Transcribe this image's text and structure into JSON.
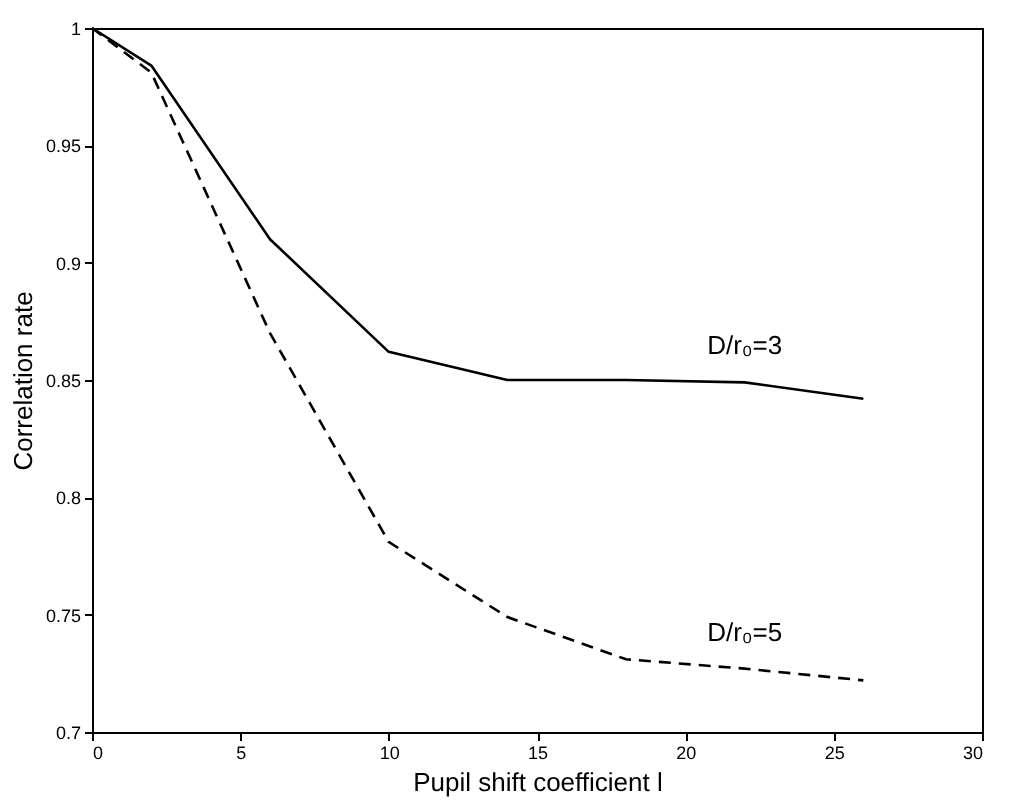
{
  "chart_data": {
    "type": "line",
    "xlabel": "Pupil shift coefficient l",
    "ylabel": "Correlation rate",
    "x": [
      0,
      2,
      6,
      10,
      14,
      18,
      22,
      26
    ],
    "series": [
      {
        "name": "D/r₀=3",
        "color": "#000000",
        "line_style": "solid",
        "values": [
          1,
          0.984,
          0.91,
          0.862,
          0.85,
          0.85,
          0.849,
          0.842
        ]
      },
      {
        "name": "D/r₀=5",
        "color": "#000000",
        "line_style": "dashed",
        "values": [
          1,
          0.981,
          0.87,
          0.781,
          0.749,
          0.731,
          0.727,
          0.722
        ]
      }
    ],
    "xlim": [
      0,
      30
    ],
    "xticks": [
      0,
      5,
      10,
      15,
      20,
      25,
      30
    ],
    "ylim": [
      0.7,
      1
    ],
    "yticks": [
      0.7,
      0.75,
      0.8,
      0.85,
      0.9,
      0.95,
      1
    ],
    "grid": false,
    "legend": false
  }
}
